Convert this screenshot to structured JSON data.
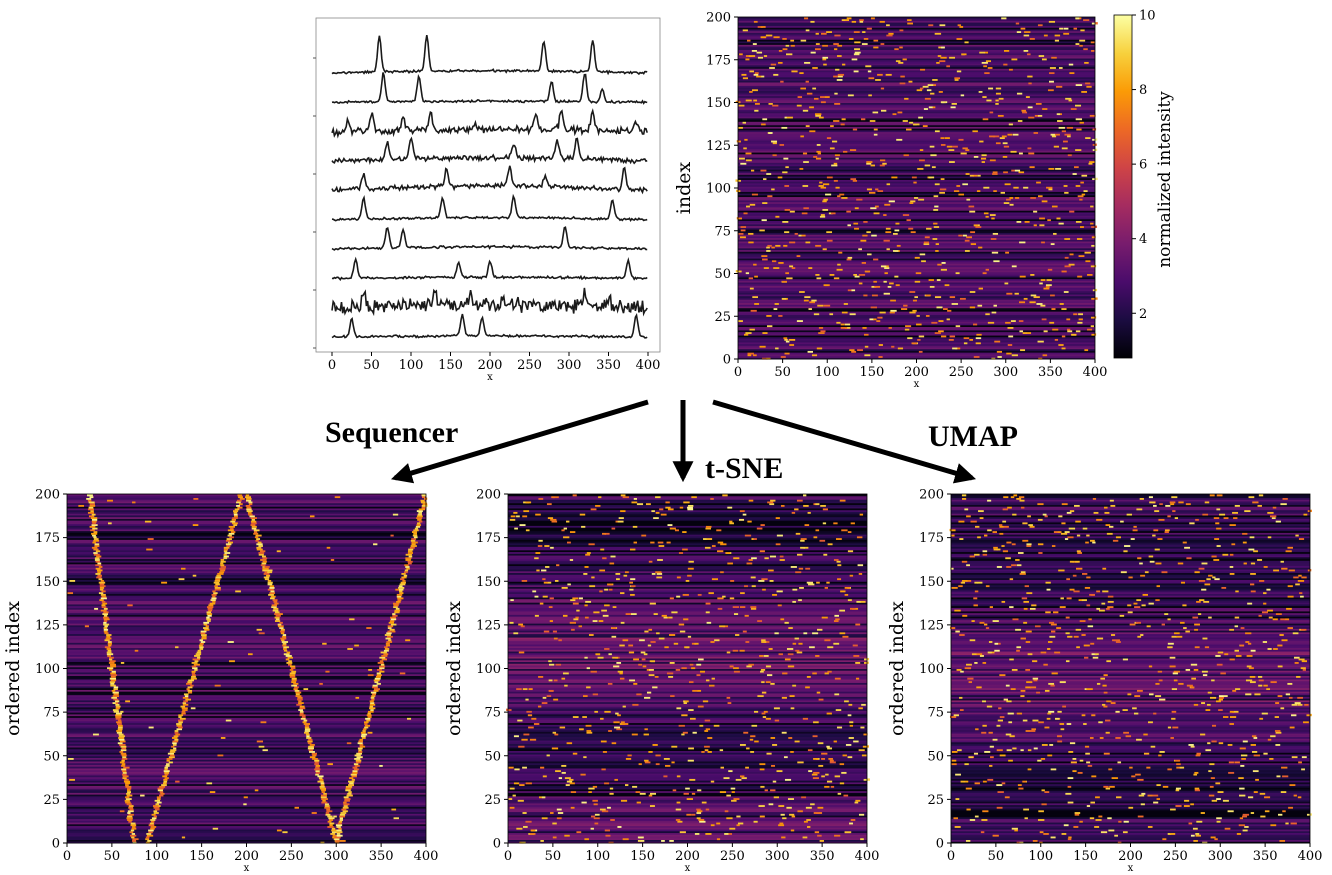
{
  "colors": {
    "cmap": [
      "#000004",
      "#1b0c41",
      "#4a0c6b",
      "#781c6d",
      "#a52c60",
      "#cf4446",
      "#ed6925",
      "#fb9b06",
      "#f7d13d",
      "#fcffa4"
    ],
    "line": "#1a1a1a",
    "arrow": "#000000"
  },
  "labels": {
    "sequencer": "Sequencer",
    "tsne": "t-SNE",
    "umap": "UMAP"
  },
  "chart_data": [
    {
      "id": "spectra",
      "type": "line",
      "xlabel": "x",
      "xlim": [
        0,
        400
      ],
      "xticks": [
        0,
        50,
        100,
        150,
        200,
        250,
        300,
        350,
        400
      ],
      "series": [
        {
          "peaks": [
            [
              60,
              1.0
            ],
            [
              120,
              1.0
            ],
            [
              268,
              0.85
            ],
            [
              330,
              0.9
            ]
          ],
          "noise": 0.02,
          "baseline": 0.2
        },
        {
          "peaks": [
            [
              65,
              0.8
            ],
            [
              110,
              0.7
            ],
            [
              278,
              0.55
            ],
            [
              320,
              0.8
            ],
            [
              342,
              0.35
            ]
          ],
          "noise": 0.02,
          "baseline": 0.1
        },
        {
          "peaks": [
            [
              20,
              0.3
            ],
            [
              50,
              0.5
            ],
            [
              90,
              0.4
            ],
            [
              125,
              0.5
            ],
            [
              180,
              0.2
            ],
            [
              258,
              0.4
            ],
            [
              290,
              0.5
            ],
            [
              330,
              0.5
            ],
            [
              385,
              0.3
            ]
          ],
          "noise": 0.06,
          "baseline": 0.2
        },
        {
          "peaks": [
            [
              70,
              0.5
            ],
            [
              100,
              0.6
            ],
            [
              230,
              0.4
            ],
            [
              285,
              0.5
            ],
            [
              310,
              0.6
            ]
          ],
          "noise": 0.04,
          "baseline": 0.3
        },
        {
          "peaks": [
            [
              40,
              0.4
            ],
            [
              145,
              0.5
            ],
            [
              225,
              0.6
            ],
            [
              270,
              0.3
            ],
            [
              370,
              0.6
            ]
          ],
          "noise": 0.04,
          "baseline": 0.4
        },
        {
          "peaks": [
            [
              40,
              0.6
            ],
            [
              140,
              0.55
            ],
            [
              230,
              0.6
            ],
            [
              355,
              0.55
            ]
          ],
          "noise": 0.02,
          "baseline": 0.2
        },
        {
          "peaks": [
            [
              70,
              0.55
            ],
            [
              90,
              0.5
            ],
            [
              295,
              0.6
            ]
          ],
          "noise": 0.02,
          "baseline": 0.2
        },
        {
          "peaks": [
            [
              30,
              0.5
            ],
            [
              160,
              0.4
            ],
            [
              200,
              0.45
            ],
            [
              375,
              0.5
            ]
          ],
          "noise": 0.02,
          "baseline": 0.1
        },
        {
          "peaks": [
            [
              40,
              0.4
            ],
            [
              130,
              0.4
            ],
            [
              175,
              0.3
            ],
            [
              320,
              0.35
            ],
            [
              350,
              0.3
            ]
          ],
          "noise": 0.12,
          "baseline": 0.3
        },
        {
          "peaks": [
            [
              25,
              0.5
            ],
            [
              165,
              0.6
            ],
            [
              190,
              0.5
            ],
            [
              385,
              0.6
            ]
          ],
          "noise": 0.02,
          "baseline": 0.1
        }
      ]
    },
    {
      "id": "original",
      "type": "heatmap",
      "xlabel": "x",
      "ylabel": "index",
      "xlim": [
        0,
        400
      ],
      "ylim": [
        0,
        200
      ],
      "xticks": [
        0,
        50,
        100,
        150,
        200,
        250,
        300,
        350,
        400
      ],
      "yticks": [
        0,
        25,
        50,
        75,
        100,
        125,
        150,
        175,
        200
      ],
      "colorbar": {
        "label": "normalized intensity",
        "range": [
          0.8,
          10
        ],
        "ticks": [
          2,
          4,
          6,
          8,
          10
        ]
      },
      "pattern": "random"
    },
    {
      "id": "sequencer",
      "type": "heatmap",
      "xlabel": "x",
      "ylabel": "ordered index",
      "xlim": [
        0,
        400
      ],
      "ylim": [
        0,
        200
      ],
      "xticks": [
        0,
        50,
        100,
        150,
        200,
        250,
        300,
        350,
        400
      ],
      "yticks": [
        0,
        25,
        50,
        75,
        100,
        125,
        150,
        175,
        200
      ],
      "pattern": "W",
      "ridges": [
        [
          [
            0,
            75
          ],
          [
            200,
            25
          ]
        ],
        [
          [
            0,
            90
          ],
          [
            200,
            195
          ]
        ],
        [
          [
            0,
            300
          ],
          [
            200,
            200
          ]
        ],
        [
          [
            0,
            300
          ],
          [
            200,
            400
          ]
        ]
      ]
    },
    {
      "id": "tsne",
      "type": "heatmap",
      "xlabel": "x",
      "ylabel": "ordered index",
      "xlim": [
        0,
        400
      ],
      "ylim": [
        0,
        200
      ],
      "xticks": [
        0,
        50,
        100,
        150,
        200,
        250,
        300,
        350,
        400
      ],
      "yticks": [
        0,
        25,
        50,
        75,
        100,
        125,
        150,
        175,
        200
      ],
      "pattern": "clustered"
    },
    {
      "id": "umap",
      "type": "heatmap",
      "xlabel": "x",
      "ylabel": "ordered index",
      "xlim": [
        0,
        400
      ],
      "ylim": [
        0,
        200
      ],
      "xticks": [
        0,
        50,
        100,
        150,
        200,
        250,
        300,
        350,
        400
      ],
      "yticks": [
        0,
        25,
        50,
        75,
        100,
        125,
        150,
        175,
        200
      ],
      "pattern": "clustered"
    }
  ]
}
